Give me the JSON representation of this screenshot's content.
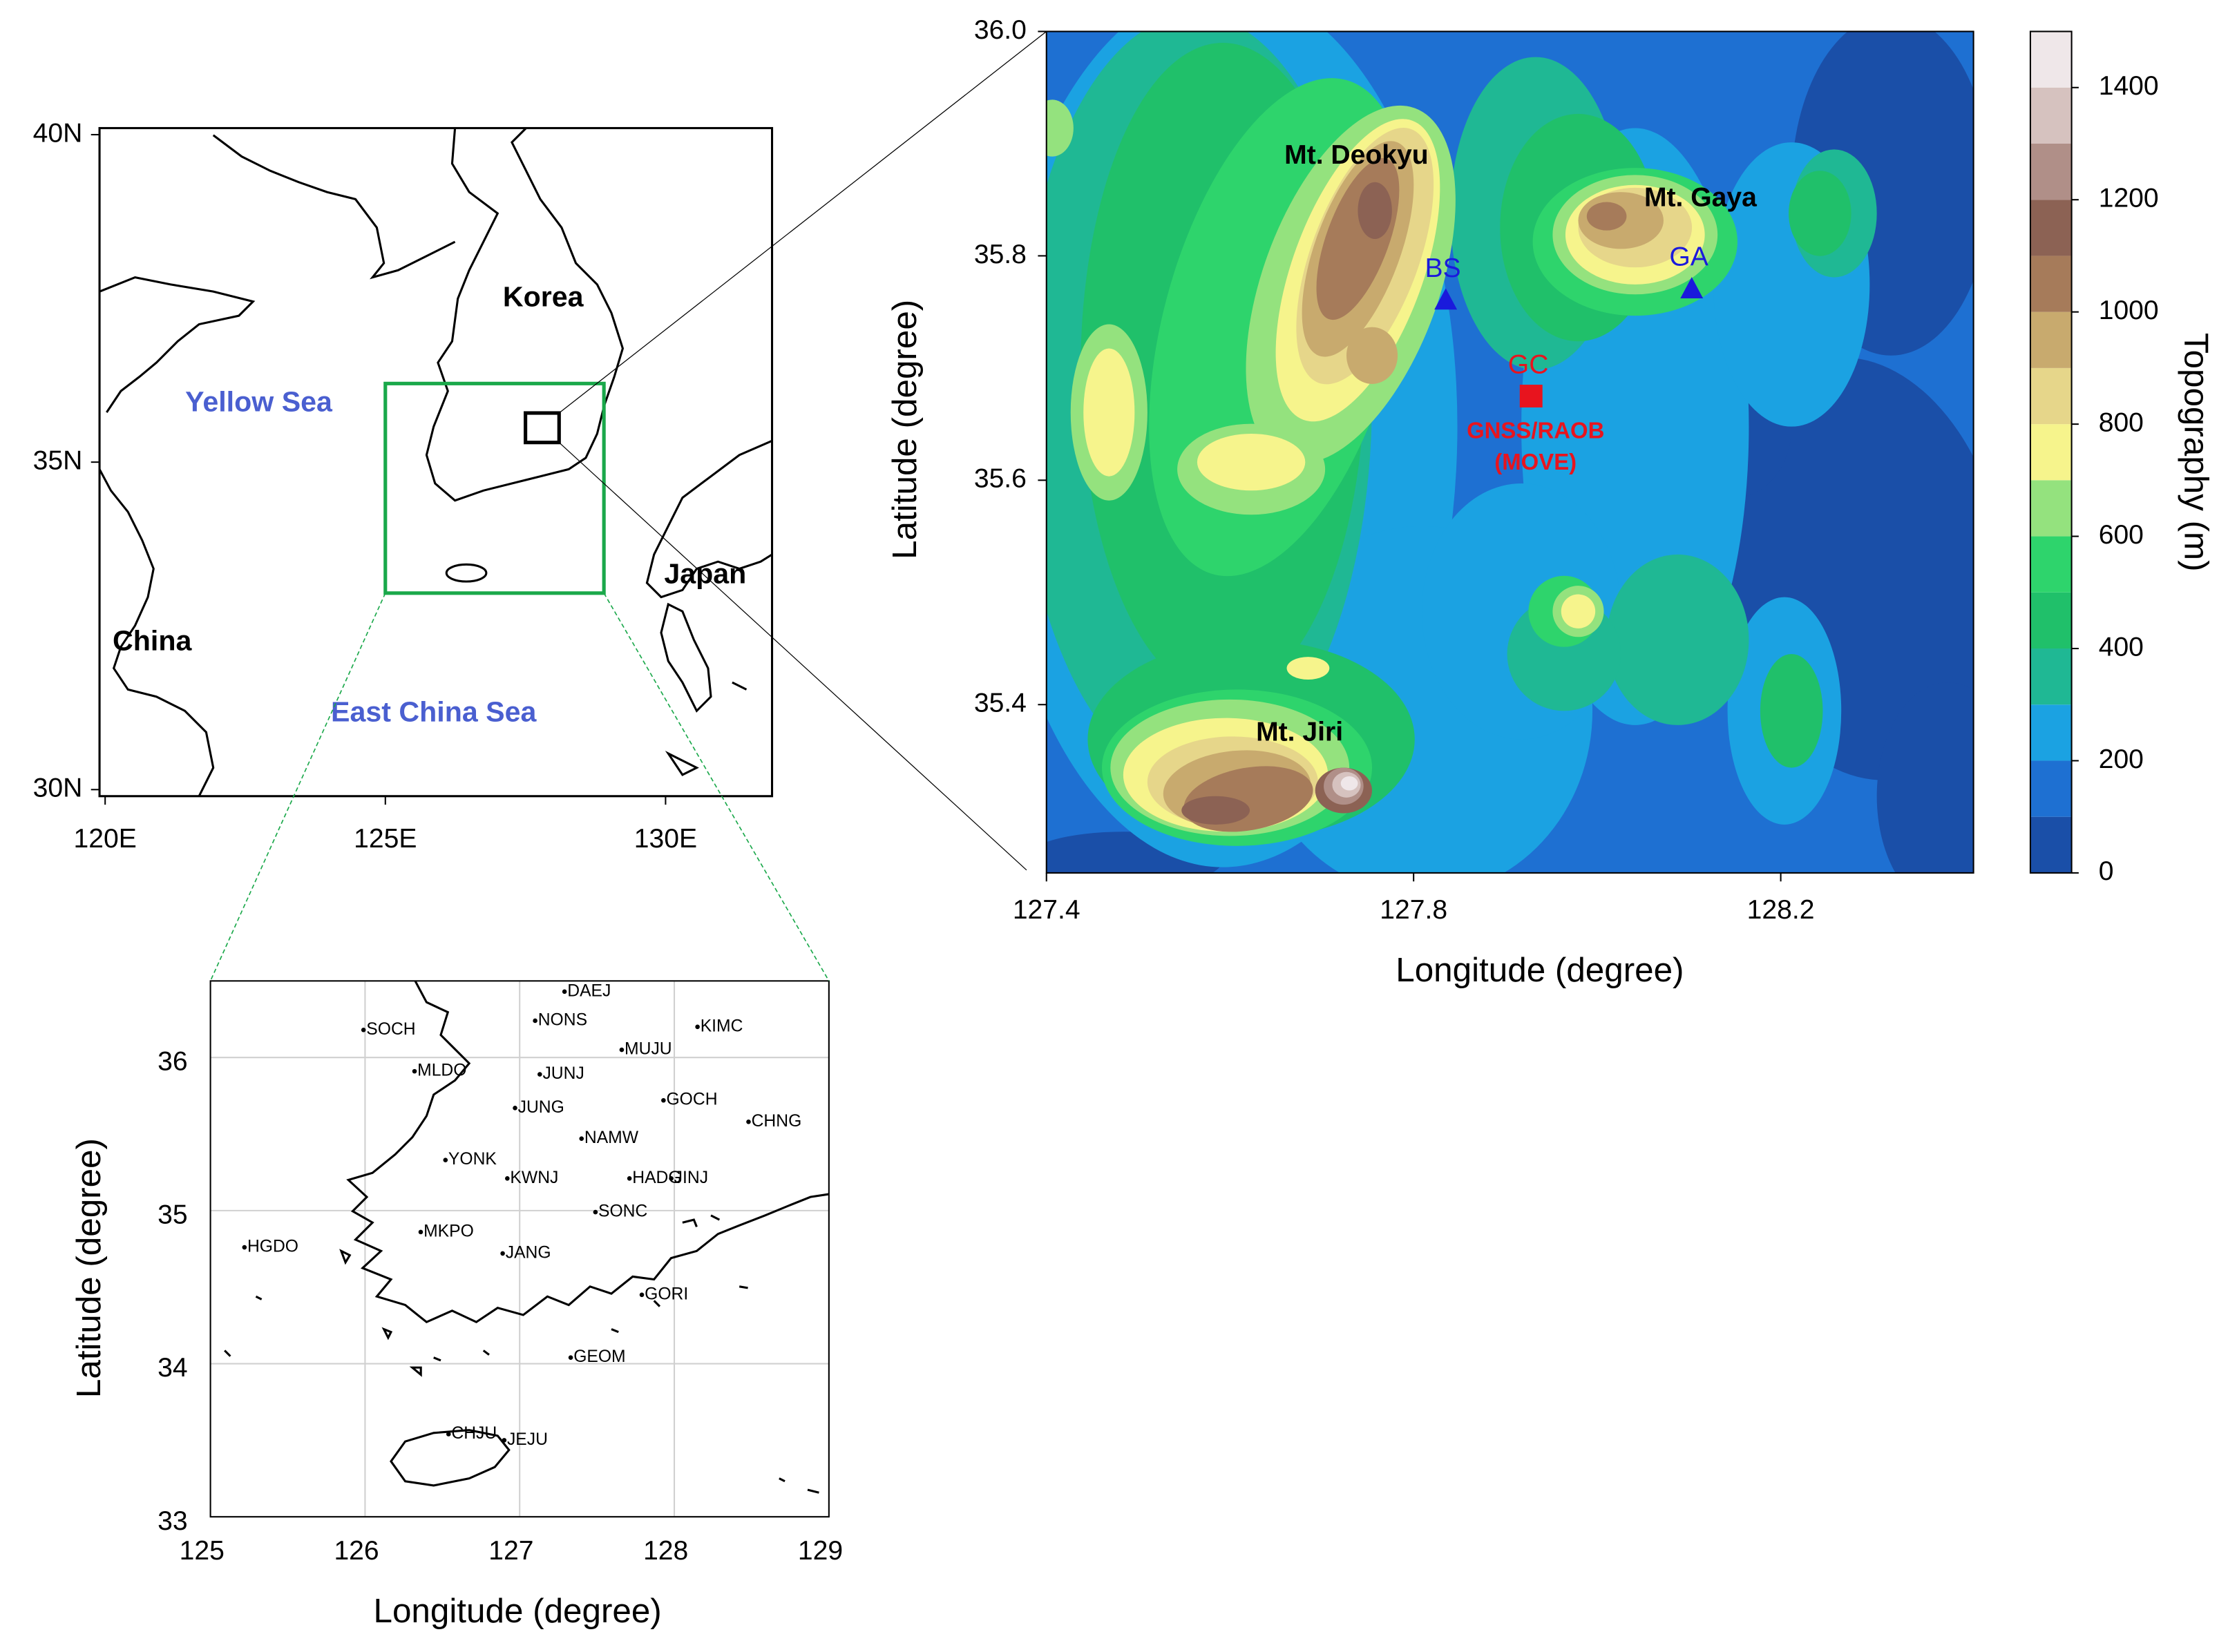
{
  "overview_map": {
    "xlim": [
      119.9,
      131.9
    ],
    "ylim": [
      29.9,
      40.1
    ],
    "xticks": [
      {
        "value": 120,
        "label": "120E"
      },
      {
        "value": 125,
        "label": "125E"
      },
      {
        "value": 130,
        "label": "130E"
      }
    ],
    "yticks": [
      {
        "value": 30,
        "label": "30N"
      },
      {
        "value": 35,
        "label": "35N"
      },
      {
        "value": 40,
        "label": "40N"
      }
    ],
    "labels": {
      "korea": "Korea",
      "yellow_sea": "Yellow Sea",
      "japan": "Japan",
      "china": "China",
      "east_china_sea": "East China Sea"
    },
    "domain_box": {
      "lon": [
        125,
        128.9
      ],
      "lat": [
        33,
        36.2
      ]
    },
    "study_box": {
      "lon": [
        127.5,
        128.1
      ],
      "lat": [
        35.3,
        35.75
      ]
    }
  },
  "station_map": {
    "xlabel": "Longitude (degree)",
    "ylabel": "Latitude (degree)",
    "xlim": [
      125,
      129
    ],
    "ylim": [
      33,
      36.5
    ],
    "xticks": [
      125,
      126,
      127,
      128,
      129
    ],
    "yticks": [
      33,
      34,
      35,
      36
    ],
    "stations": [
      {
        "name": "DAEJ",
        "lon": 127.29,
        "lat": 36.43
      },
      {
        "name": "NONS",
        "lon": 127.1,
        "lat": 36.24
      },
      {
        "name": "KIMC",
        "lon": 128.15,
        "lat": 36.2
      },
      {
        "name": "SOCH",
        "lon": 125.99,
        "lat": 36.18
      },
      {
        "name": "MUJU",
        "lon": 127.66,
        "lat": 36.05
      },
      {
        "name": "MLDO",
        "lon": 126.32,
        "lat": 35.91
      },
      {
        "name": "JUNJ",
        "lon": 127.13,
        "lat": 35.89
      },
      {
        "name": "GOCH",
        "lon": 127.93,
        "lat": 35.72
      },
      {
        "name": "JUNG",
        "lon": 126.97,
        "lat": 35.67
      },
      {
        "name": "CHNG",
        "lon": 128.48,
        "lat": 35.58
      },
      {
        "name": "NAMW",
        "lon": 127.4,
        "lat": 35.47
      },
      {
        "name": "YONK",
        "lon": 126.52,
        "lat": 35.33
      },
      {
        "name": "KWNJ",
        "lon": 126.92,
        "lat": 35.21
      },
      {
        "name": "HADG",
        "lon": 127.71,
        "lat": 35.21
      },
      {
        "name": "JINJ",
        "lon": 127.98,
        "lat": 35.21
      },
      {
        "name": "SONC",
        "lon": 127.49,
        "lat": 34.99
      },
      {
        "name": "MKPO",
        "lon": 126.36,
        "lat": 34.86
      },
      {
        "name": "HGDO",
        "lon": 125.22,
        "lat": 34.76
      },
      {
        "name": "JANG",
        "lon": 126.89,
        "lat": 34.72
      },
      {
        "name": "GORI",
        "lon": 127.79,
        "lat": 34.45
      },
      {
        "name": "GEOM",
        "lon": 127.33,
        "lat": 34.04
      },
      {
        "name": "CHJU",
        "lon": 126.54,
        "lat": 33.54
      },
      {
        "name": "JEJU",
        "lon": 126.9,
        "lat": 33.5
      }
    ]
  },
  "topo_map": {
    "xlabel": "Longitude (degree)",
    "ylabel": "Latitude (degree)",
    "xlim": [
      127.4,
      128.41
    ],
    "ylim": [
      35.25,
      36.0
    ],
    "xticks": [
      {
        "value": 127.4,
        "label": "127.4"
      },
      {
        "value": 127.8,
        "label": "127.8"
      },
      {
        "value": 128.2,
        "label": "128.2"
      }
    ],
    "yticks": [
      {
        "value": 35.4,
        "label": "35.4"
      },
      {
        "value": 35.6,
        "label": "35.6"
      },
      {
        "value": 35.8,
        "label": "35.8"
      },
      {
        "value": 36.0,
        "label": "36.0"
      }
    ],
    "peaks": {
      "deokyu": "Mt. Deokyu",
      "gaya": "Mt. Gaya",
      "jiri": "Mt. Jiri"
    },
    "sites": [
      {
        "name": "BS",
        "lon": 127.835,
        "lat": 35.761,
        "marker": "triangle",
        "color": "#1a1adc"
      },
      {
        "name": "GA",
        "lon": 128.103,
        "lat": 35.771,
        "marker": "triangle",
        "color": "#1a1adc"
      },
      {
        "name": "GC",
        "lon": 127.928,
        "lat": 35.675,
        "marker": "square",
        "color": "#e8141e"
      }
    ],
    "gc_note": [
      "GNSS/RAOB",
      "(MOVE)"
    ],
    "colorbar": {
      "label": "Topography (m)",
      "levels": [
        0,
        100,
        200,
        300,
        400,
        500,
        600,
        700,
        800,
        900,
        1000,
        1100,
        1200,
        1300,
        1400,
        1500
      ],
      "colors": [
        "#1a4fa8",
        "#1e70d2",
        "#1ba2e2",
        "#1fb894",
        "#20c06a",
        "#2ed46c",
        "#94e27e",
        "#f6f48c",
        "#e6d68a",
        "#c8aa6e",
        "#a67b5a",
        "#8c6254",
        "#b08f88",
        "#d6c2bf",
        "#efe7e9"
      ],
      "ticks": [
        0,
        200,
        400,
        600,
        800,
        1000,
        1200,
        1400
      ]
    }
  }
}
